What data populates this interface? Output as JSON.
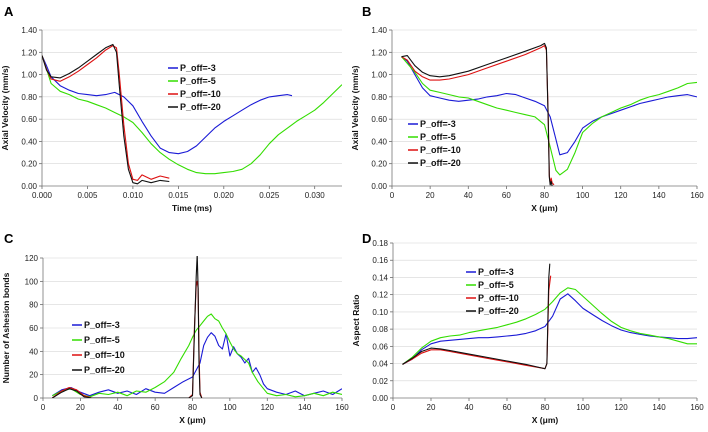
{
  "chart_data": [
    {
      "panel": "A",
      "type": "line",
      "xlabel": "Time (ms)",
      "ylabel": "Axial Velocity (mm/s)",
      "xlim": [
        0,
        0.033
      ],
      "ylim": [
        0,
        1.4
      ],
      "xticks": [
        "0.000",
        "0.005",
        "0.010",
        "0.015",
        "0.020",
        "0.025",
        "0.030"
      ],
      "yticks": [
        "0.00",
        "0.20",
        "0.40",
        "0.60",
        "0.80",
        "1.00",
        "1.20",
        "1.40"
      ],
      "legend": [
        "P_off=-3",
        "P_off=-5",
        "P_off=-10",
        "P_off=-20"
      ],
      "series": [
        {
          "name": "P_off=-3",
          "color": "#1a1ad6",
          "x": [
            0,
            0.0005,
            0.001,
            0.002,
            0.003,
            0.004,
            0.005,
            0.006,
            0.007,
            0.008,
            0.009,
            0.01,
            0.011,
            0.012,
            0.013,
            0.014,
            0.015,
            0.016,
            0.017,
            0.018,
            0.019,
            0.02,
            0.021,
            0.022,
            0.023,
            0.024,
            0.025,
            0.026,
            0.027,
            0.0275
          ],
          "y": [
            1.17,
            1.08,
            0.98,
            0.9,
            0.86,
            0.83,
            0.82,
            0.81,
            0.82,
            0.84,
            0.8,
            0.72,
            0.58,
            0.45,
            0.34,
            0.3,
            0.29,
            0.31,
            0.36,
            0.44,
            0.52,
            0.58,
            0.63,
            0.68,
            0.73,
            0.77,
            0.8,
            0.81,
            0.82,
            0.81
          ]
        },
        {
          "name": "P_off=-5",
          "color": "#33dd00",
          "x": [
            0,
            0.0005,
            0.001,
            0.002,
            0.003,
            0.004,
            0.005,
            0.006,
            0.007,
            0.008,
            0.009,
            0.01,
            0.011,
            0.012,
            0.013,
            0.014,
            0.015,
            0.016,
            0.017,
            0.018,
            0.019,
            0.02,
            0.021,
            0.022,
            0.023,
            0.024,
            0.025,
            0.026,
            0.027,
            0.028,
            0.029,
            0.03,
            0.031,
            0.032,
            0.033
          ],
          "y": [
            1.17,
            1.05,
            0.92,
            0.85,
            0.82,
            0.78,
            0.76,
            0.73,
            0.7,
            0.66,
            0.62,
            0.57,
            0.48,
            0.38,
            0.3,
            0.24,
            0.19,
            0.15,
            0.12,
            0.11,
            0.11,
            0.12,
            0.13,
            0.15,
            0.2,
            0.28,
            0.38,
            0.46,
            0.52,
            0.58,
            0.63,
            0.68,
            0.75,
            0.83,
            0.91
          ]
        },
        {
          "name": "P_off=-10",
          "color": "#dd1111",
          "x": [
            0,
            0.0005,
            0.001,
            0.002,
            0.003,
            0.004,
            0.005,
            0.006,
            0.007,
            0.0078,
            0.0082,
            0.0085,
            0.009,
            0.0095,
            0.01,
            0.0105,
            0.011,
            0.012,
            0.013,
            0.014
          ],
          "y": [
            1.17,
            1.05,
            0.96,
            0.94,
            0.98,
            1.03,
            1.09,
            1.15,
            1.22,
            1.26,
            1.24,
            1.0,
            0.55,
            0.2,
            0.06,
            0.05,
            0.1,
            0.06,
            0.09,
            0.07
          ]
        },
        {
          "name": "P_off=-20",
          "color": "#111111",
          "x": [
            0,
            0.0005,
            0.001,
            0.002,
            0.003,
            0.004,
            0.005,
            0.006,
            0.007,
            0.0078,
            0.0082,
            0.0085,
            0.009,
            0.0095,
            0.01,
            0.0105,
            0.011,
            0.012,
            0.013,
            0.014
          ],
          "y": [
            1.17,
            1.04,
            0.98,
            0.97,
            1.01,
            1.06,
            1.12,
            1.18,
            1.24,
            1.27,
            1.2,
            0.9,
            0.45,
            0.15,
            0.03,
            0.02,
            0.05,
            0.03,
            0.05,
            0.04
          ]
        }
      ]
    },
    {
      "panel": "B",
      "type": "line",
      "xlabel": "X (μm)",
      "ylabel": "Axial Velocity (mm/s)",
      "xlim": [
        0,
        160
      ],
      "ylim": [
        0,
        1.4
      ],
      "xticks": [
        "0",
        "20",
        "40",
        "60",
        "80",
        "100",
        "120",
        "140",
        "160"
      ],
      "yticks": [
        "0.00",
        "0.20",
        "0.40",
        "0.60",
        "0.80",
        "1.00",
        "1.20",
        "1.40"
      ],
      "legend": [
        "P_off=-3",
        "P_off=-5",
        "P_off=-10",
        "P_off=-20"
      ],
      "series": [
        {
          "name": "P_off=-3",
          "color": "#1a1ad6",
          "x": [
            5,
            8,
            12,
            16,
            20,
            25,
            30,
            35,
            40,
            45,
            50,
            55,
            60,
            65,
            70,
            75,
            80,
            83,
            86,
            88,
            92,
            96,
            100,
            105,
            110,
            115,
            120,
            125,
            130,
            135,
            140,
            145,
            150,
            155,
            160
          ],
          "y": [
            1.16,
            1.12,
            1.0,
            0.88,
            0.81,
            0.79,
            0.77,
            0.76,
            0.77,
            0.78,
            0.8,
            0.81,
            0.83,
            0.82,
            0.79,
            0.76,
            0.72,
            0.62,
            0.42,
            0.28,
            0.3,
            0.4,
            0.52,
            0.58,
            0.62,
            0.65,
            0.68,
            0.71,
            0.74,
            0.76,
            0.78,
            0.8,
            0.81,
            0.82,
            0.8
          ]
        },
        {
          "name": "P_off=-5",
          "color": "#33dd00",
          "x": [
            5,
            8,
            12,
            16,
            20,
            25,
            30,
            35,
            40,
            45,
            50,
            55,
            60,
            65,
            70,
            75,
            80,
            83,
            86,
            88,
            92,
            96,
            100,
            105,
            110,
            115,
            120,
            125,
            130,
            135,
            140,
            145,
            150,
            155,
            160
          ],
          "y": [
            1.16,
            1.1,
            1.02,
            0.92,
            0.86,
            0.84,
            0.82,
            0.8,
            0.79,
            0.76,
            0.73,
            0.7,
            0.68,
            0.66,
            0.64,
            0.62,
            0.55,
            0.35,
            0.14,
            0.1,
            0.15,
            0.3,
            0.48,
            0.56,
            0.62,
            0.66,
            0.7,
            0.73,
            0.77,
            0.8,
            0.82,
            0.85,
            0.88,
            0.92,
            0.93
          ]
        },
        {
          "name": "P_off=-10",
          "color": "#dd1111",
          "x": [
            5,
            8,
            12,
            16,
            20,
            25,
            30,
            40,
            50,
            60,
            70,
            78,
            80,
            81,
            82,
            82.5,
            83,
            83.5,
            84,
            85
          ],
          "y": [
            1.16,
            1.13,
            1.03,
            0.98,
            0.95,
            0.95,
            0.96,
            1.0,
            1.06,
            1.12,
            1.18,
            1.24,
            1.26,
            1.22,
            0.6,
            0.1,
            0.02,
            0.07,
            0.03,
            0.01
          ]
        },
        {
          "name": "P_off=-20",
          "color": "#111111",
          "x": [
            5,
            8,
            12,
            16,
            20,
            25,
            30,
            40,
            50,
            60,
            70,
            78,
            80,
            81,
            82,
            82.5,
            83,
            83.5,
            84
          ],
          "y": [
            1.16,
            1.17,
            1.08,
            1.02,
            0.99,
            0.98,
            0.99,
            1.03,
            1.09,
            1.15,
            1.21,
            1.26,
            1.28,
            1.24,
            0.55,
            0.08,
            0.01,
            0.04,
            0.0
          ]
        }
      ]
    },
    {
      "panel": "C",
      "type": "line",
      "xlabel": "X (μm)",
      "ylabel": "Number of Ashesion bonds",
      "xlim": [
        0,
        160
      ],
      "ylim": [
        0,
        120
      ],
      "xticks": [
        "0",
        "20",
        "40",
        "60",
        "80",
        "100",
        "120",
        "140",
        "160"
      ],
      "yticks": [
        "0",
        "20",
        "40",
        "60",
        "80",
        "100",
        "120"
      ],
      "legend": [
        "P_off=-3",
        "P_off=-5",
        "P_off=-10",
        "P_off=-20"
      ],
      "series": [
        {
          "name": "P_off=-3",
          "color": "#1a1ad6",
          "x": [
            5,
            10,
            15,
            20,
            25,
            30,
            35,
            40,
            45,
            50,
            55,
            60,
            65,
            70,
            75,
            80,
            84,
            86,
            88,
            90,
            92,
            94,
            96,
            98,
            100,
            102,
            104,
            106,
            108,
            110,
            112,
            114,
            116,
            118,
            120,
            125,
            130,
            135,
            140,
            145,
            150,
            155,
            160
          ],
          "y": [
            2,
            7,
            9,
            5,
            2,
            5,
            7,
            4,
            6,
            3,
            8,
            5,
            4,
            9,
            14,
            18,
            30,
            45,
            52,
            56,
            53,
            45,
            42,
            55,
            36,
            44,
            38,
            35,
            30,
            34,
            22,
            26,
            20,
            12,
            8,
            5,
            3,
            6,
            2,
            4,
            6,
            3,
            8
          ]
        },
        {
          "name": "P_off=-5",
          "color": "#33dd00",
          "x": [
            5,
            10,
            15,
            20,
            25,
            30,
            35,
            40,
            45,
            50,
            55,
            60,
            65,
            70,
            74,
            78,
            80,
            82,
            84,
            86,
            88,
            90,
            92,
            94,
            96,
            98,
            100,
            102,
            104,
            106,
            108,
            110,
            112,
            115,
            118,
            120,
            125,
            130,
            135,
            140,
            145,
            150,
            155,
            160
          ],
          "y": [
            2,
            6,
            8,
            3,
            1,
            4,
            3,
            5,
            2,
            6,
            5,
            9,
            14,
            22,
            34,
            45,
            52,
            58,
            62,
            66,
            70,
            72,
            68,
            66,
            60,
            55,
            48,
            42,
            38,
            36,
            33,
            30,
            22,
            14,
            8,
            4,
            2,
            3,
            1,
            2,
            4,
            2,
            5,
            3
          ]
        },
        {
          "name": "P_off=-10",
          "color": "#dd1111",
          "x": [
            5,
            10,
            14,
            18,
            22,
            26,
            30,
            70,
            78,
            80,
            81,
            82,
            82.5,
            83,
            83.5,
            84,
            85
          ],
          "y": [
            0,
            6,
            9,
            7,
            2,
            0,
            0,
            0,
            0,
            3,
            60,
            96,
            100,
            94,
            40,
            5,
            0
          ]
        },
        {
          "name": "P_off=-20",
          "color": "#111111",
          "x": [
            5,
            10,
            14,
            18,
            22,
            26,
            30,
            70,
            78,
            80,
            81,
            82,
            82.5,
            83,
            83.5,
            84,
            85
          ],
          "y": [
            0,
            5,
            8,
            6,
            1,
            0,
            0,
            0,
            0,
            2,
            55,
            104,
            123,
            95,
            30,
            3,
            0
          ]
        }
      ]
    },
    {
      "panel": "D",
      "type": "line",
      "xlabel": "X (μm)",
      "ylabel": "Aspect Ratio",
      "xlim": [
        0,
        160
      ],
      "ylim": [
        0,
        0.18
      ],
      "xticks": [
        "0",
        "20",
        "40",
        "60",
        "80",
        "100",
        "120",
        "140",
        "160"
      ],
      "yticks": [
        "0.00",
        "0.02",
        "0.04",
        "0.06",
        "0.08",
        "0.10",
        "0.12",
        "0.14",
        "0.16",
        "0.18"
      ],
      "legend": [
        "P_off=-3",
        "P_off=-5",
        "P_off=-10",
        "P_off=-20"
      ],
      "series": [
        {
          "name": "P_off=-3",
          "color": "#1a1ad6",
          "x": [
            5,
            10,
            15,
            20,
            25,
            30,
            35,
            40,
            45,
            50,
            55,
            60,
            65,
            70,
            75,
            80,
            84,
            88,
            92,
            96,
            100,
            105,
            110,
            115,
            120,
            125,
            130,
            135,
            140,
            145,
            150,
            155,
            160
          ],
          "y": [
            0.039,
            0.045,
            0.056,
            0.063,
            0.066,
            0.067,
            0.068,
            0.069,
            0.07,
            0.07,
            0.071,
            0.072,
            0.073,
            0.075,
            0.078,
            0.083,
            0.095,
            0.115,
            0.121,
            0.113,
            0.104,
            0.097,
            0.09,
            0.084,
            0.079,
            0.076,
            0.074,
            0.072,
            0.071,
            0.07,
            0.069,
            0.069,
            0.07
          ]
        },
        {
          "name": "P_off=-5",
          "color": "#33dd00",
          "x": [
            5,
            10,
            15,
            20,
            25,
            30,
            35,
            40,
            45,
            50,
            55,
            60,
            65,
            70,
            75,
            80,
            84,
            88,
            92,
            96,
            100,
            105,
            110,
            115,
            120,
            125,
            130,
            135,
            140,
            145,
            150,
            155,
            160
          ],
          "y": [
            0.039,
            0.047,
            0.058,
            0.066,
            0.07,
            0.072,
            0.073,
            0.076,
            0.078,
            0.08,
            0.082,
            0.085,
            0.088,
            0.092,
            0.097,
            0.103,
            0.112,
            0.122,
            0.128,
            0.126,
            0.118,
            0.108,
            0.098,
            0.089,
            0.082,
            0.078,
            0.075,
            0.073,
            0.071,
            0.069,
            0.066,
            0.063,
            0.063
          ]
        },
        {
          "name": "P_off=-10",
          "color": "#dd1111",
          "x": [
            5,
            10,
            15,
            20,
            25,
            30,
            40,
            50,
            60,
            70,
            78,
            80,
            81,
            82,
            83
          ],
          "y": [
            0.039,
            0.045,
            0.052,
            0.056,
            0.056,
            0.054,
            0.05,
            0.046,
            0.042,
            0.038,
            0.035,
            0.034,
            0.04,
            0.125,
            0.142
          ]
        },
        {
          "name": "P_off=-20",
          "color": "#111111",
          "x": [
            5,
            10,
            15,
            20,
            25,
            30,
            40,
            50,
            60,
            70,
            78,
            80,
            81,
            82,
            82.5
          ],
          "y": [
            0.039,
            0.046,
            0.054,
            0.058,
            0.057,
            0.055,
            0.051,
            0.047,
            0.043,
            0.039,
            0.035,
            0.034,
            0.04,
            0.14,
            0.156
          ]
        }
      ]
    }
  ]
}
